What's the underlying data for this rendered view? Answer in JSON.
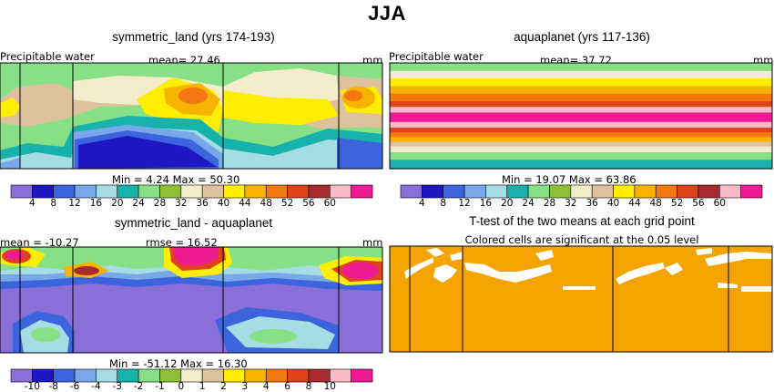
{
  "figure": {
    "title": "JJA",
    "colors": {
      "c01": "#8b6fd9",
      "c02": "#1f17c4",
      "c03": "#3c64dc",
      "c04": "#78a8e8",
      "c05": "#a6dde4",
      "c06": "#18b2ac",
      "c07": "#88e086",
      "c08": "#8fbf36",
      "c09": "#f4eccb",
      "c10": "#dec19d",
      "c11": "#ffee00",
      "c12": "#f6b400",
      "c13": "#f3780f",
      "c14": "#e0421c",
      "c15": "#a92a2e",
      "c16": "#f9bac8",
      "c17": "#ef1b93",
      "signif": "#f5a300"
    }
  },
  "panels": {
    "tl": {
      "title": "symmetric_land (yrs 174-193)",
      "left_label": "Precipitable water",
      "center_label": "mean=  27.46",
      "right_label": "mm",
      "stats": "Min =    4.24  Max =   50.30"
    },
    "tr": {
      "title": "aquaplanet (yrs 117-136)",
      "left_label": "Precipitable water",
      "center_label": "mean=  37.72",
      "right_label": "mm",
      "stats": "Min =   19.07  Max =   63.86"
    },
    "bl": {
      "title": "symmetric_land - aquaplanet",
      "left_label": "mean = -10.27",
      "center_label": "rmse =  16.52",
      "right_label": "mm",
      "stats": "Min =  -51.12  Max =   16.30"
    },
    "br": {
      "title": "T-test of the two means at each grid point",
      "subtitle": "Colored cells are significant at the 0.05 level"
    }
  },
  "chart_data": [
    {
      "type": "heatmap",
      "title": "symmetric_land (yrs 174-193)",
      "variable": "Precipitable water",
      "units": "mm",
      "mean": 27.46,
      "min": 4.24,
      "max": 50.3,
      "colorbar_levels": [
        "4",
        "8",
        "12",
        "16",
        "20",
        "24",
        "28",
        "32",
        "36",
        "40",
        "44",
        "48",
        "52",
        "56",
        "60"
      ]
    },
    {
      "type": "heatmap",
      "title": "aquaplanet (yrs 117-136)",
      "variable": "Precipitable water",
      "units": "mm",
      "mean": 37.72,
      "min": 19.07,
      "max": 63.86,
      "zonal_bands_south_to_north": [
        "c06",
        "c07",
        "c09",
        "c10",
        "c12",
        "c13",
        "c14",
        "c16",
        "c17",
        "c16",
        "c14",
        "c13",
        "c12",
        "c11",
        "c09",
        "c07"
      ],
      "colorbar_levels": [
        "4",
        "8",
        "12",
        "16",
        "20",
        "24",
        "28",
        "32",
        "36",
        "40",
        "44",
        "48",
        "52",
        "56",
        "60"
      ]
    },
    {
      "type": "heatmap",
      "title": "symmetric_land - aquaplanet",
      "units": "mm",
      "mean": -10.27,
      "rmse": 16.52,
      "min": -51.12,
      "max": 16.3,
      "colorbar_levels": [
        "-10",
        "-8",
        "-6",
        "-4",
        "-3",
        "-2",
        "-1",
        "0",
        "1",
        "2",
        "3",
        "4",
        "6",
        "8",
        "10"
      ]
    },
    {
      "type": "heatmap",
      "title": "T-test of the two means at each grid point",
      "subtitle": "Colored cells are significant at the 0.05 level"
    }
  ]
}
